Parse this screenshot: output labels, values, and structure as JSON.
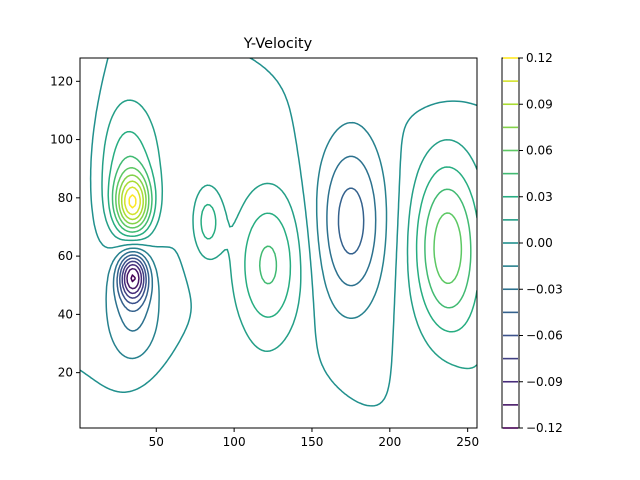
{
  "chart_data": {
    "type": "contour",
    "title": "Y-Velocity",
    "xlabel": "",
    "ylabel": "",
    "xlim": [
      1,
      256
    ],
    "ylim": [
      1,
      128
    ],
    "x_ticks": [
      50,
      100,
      150,
      200,
      250
    ],
    "y_ticks": [
      20,
      40,
      60,
      80,
      100,
      120
    ],
    "colormap": "viridis",
    "colorbar": {
      "vmin": -0.12,
      "vmax": 0.12,
      "levels": [
        -0.12,
        -0.105,
        -0.09,
        -0.075,
        -0.06,
        -0.045,
        -0.03,
        -0.015,
        0.0,
        0.015,
        0.03,
        0.045,
        0.06,
        0.075,
        0.09,
        0.105,
        0.12
      ],
      "tick_values": [
        -0.12,
        -0.09,
        -0.06,
        -0.03,
        0.0,
        0.03,
        0.06,
        0.09,
        0.12
      ],
      "tick_labels": [
        "−0.12",
        "−0.09",
        "−0.06",
        "−0.03",
        "0.00",
        "0.03",
        "0.06",
        "0.09",
        "0.12"
      ]
    },
    "features": [
      {
        "kind": "extremum",
        "x": 35,
        "y": 76,
        "value": 0.1
      },
      {
        "kind": "extremum",
        "x": 35,
        "y": 54,
        "value": -0.115
      },
      {
        "kind": "extremum",
        "x": 82,
        "y": 72,
        "value": 0.03
      },
      {
        "kind": "extremum",
        "x": 122,
        "y": 58,
        "value": 0.045
      },
      {
        "kind": "extremum",
        "x": 175,
        "y": 73,
        "value": -0.045
      },
      {
        "kind": "extremum",
        "x": 235,
        "y": 63,
        "value": 0.065
      },
      {
        "kind": "extremum",
        "x": 80,
        "y": 8,
        "value": 0.012
      },
      {
        "kind": "extremum",
        "x": 230,
        "y": 125,
        "value": -0.012
      }
    ]
  }
}
